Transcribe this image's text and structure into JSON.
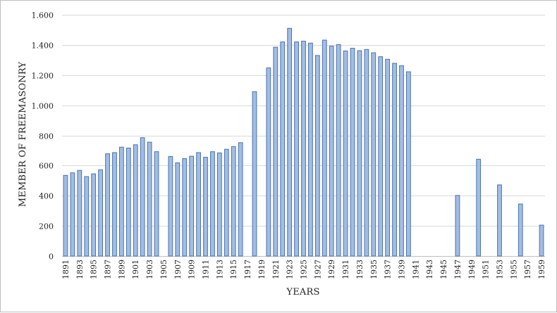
{
  "chart_data": {
    "type": "bar",
    "title": "",
    "xlabel": "YEARS",
    "ylabel": "MEMBER OF FREEMASONRY",
    "ylim": [
      0,
      1600
    ],
    "yticks": [
      0,
      200,
      400,
      600,
      800,
      1000,
      1200,
      1400,
      1600
    ],
    "ytick_labels": [
      "0",
      "200",
      "400",
      "600",
      "800",
      "1.000",
      "1.200",
      "1.400",
      "1.600"
    ],
    "grid": true,
    "legend": "none",
    "bar_color": "#a3bde3",
    "bar_edge_color": "#4a72b0",
    "categories": [
      "1891",
      "1892",
      "1893",
      "1894",
      "1895",
      "1896",
      "1897",
      "1898",
      "1899",
      "1900",
      "1901",
      "1902",
      "1903",
      "1904",
      "1905",
      "1906",
      "1907",
      "1908",
      "1909",
      "1910",
      "1911",
      "1912",
      "1913",
      "1914",
      "1915",
      "1916",
      "1917",
      "1918",
      "1919",
      "1920",
      "1921",
      "1922",
      "1923",
      "1924",
      "1925",
      "1926",
      "1927",
      "1928",
      "1929",
      "1930",
      "1931",
      "1932",
      "1933",
      "1934",
      "1935",
      "1936",
      "1937",
      "1938",
      "1939",
      "1940",
      "1941",
      "1942",
      "1943",
      "1944",
      "1945",
      "1946",
      "1947",
      "1948",
      "1949",
      "1950",
      "1951",
      "1952",
      "1953",
      "1954",
      "1955",
      "1956",
      "1957",
      "1958",
      "1959"
    ],
    "tick_labels": [
      "1891",
      "1893",
      "1895",
      "1897",
      "1899",
      "1901",
      "1903",
      "1905",
      "1907",
      "1909",
      "1911",
      "1913",
      "1915",
      "1917",
      "1919",
      "1921",
      "1923",
      "1925",
      "1927",
      "1929",
      "1931",
      "1933",
      "1935",
      "1937",
      "1939",
      "1941",
      "1943",
      "1945",
      "1947",
      "1949",
      "1951",
      "1953",
      "1955",
      "1957",
      "1959"
    ],
    "values": [
      535,
      552,
      568,
      527,
      545,
      572,
      678,
      686,
      722,
      716,
      738,
      785,
      755,
      692,
      null,
      660,
      618,
      646,
      662,
      686,
      655,
      692,
      684,
      708,
      726,
      752,
      null,
      1090,
      null,
      1248,
      1385,
      1420,
      1510,
      1420,
      1425,
      1412,
      1330,
      1432,
      1392,
      1402,
      1360,
      1378,
      1362,
      1370,
      1348,
      1322,
      1305,
      1278,
      1262,
      1222,
      null,
      null,
      null,
      null,
      null,
      null,
      402,
      null,
      null,
      642,
      null,
      null,
      472,
      null,
      null,
      345,
      null,
      null,
      205
    ]
  }
}
